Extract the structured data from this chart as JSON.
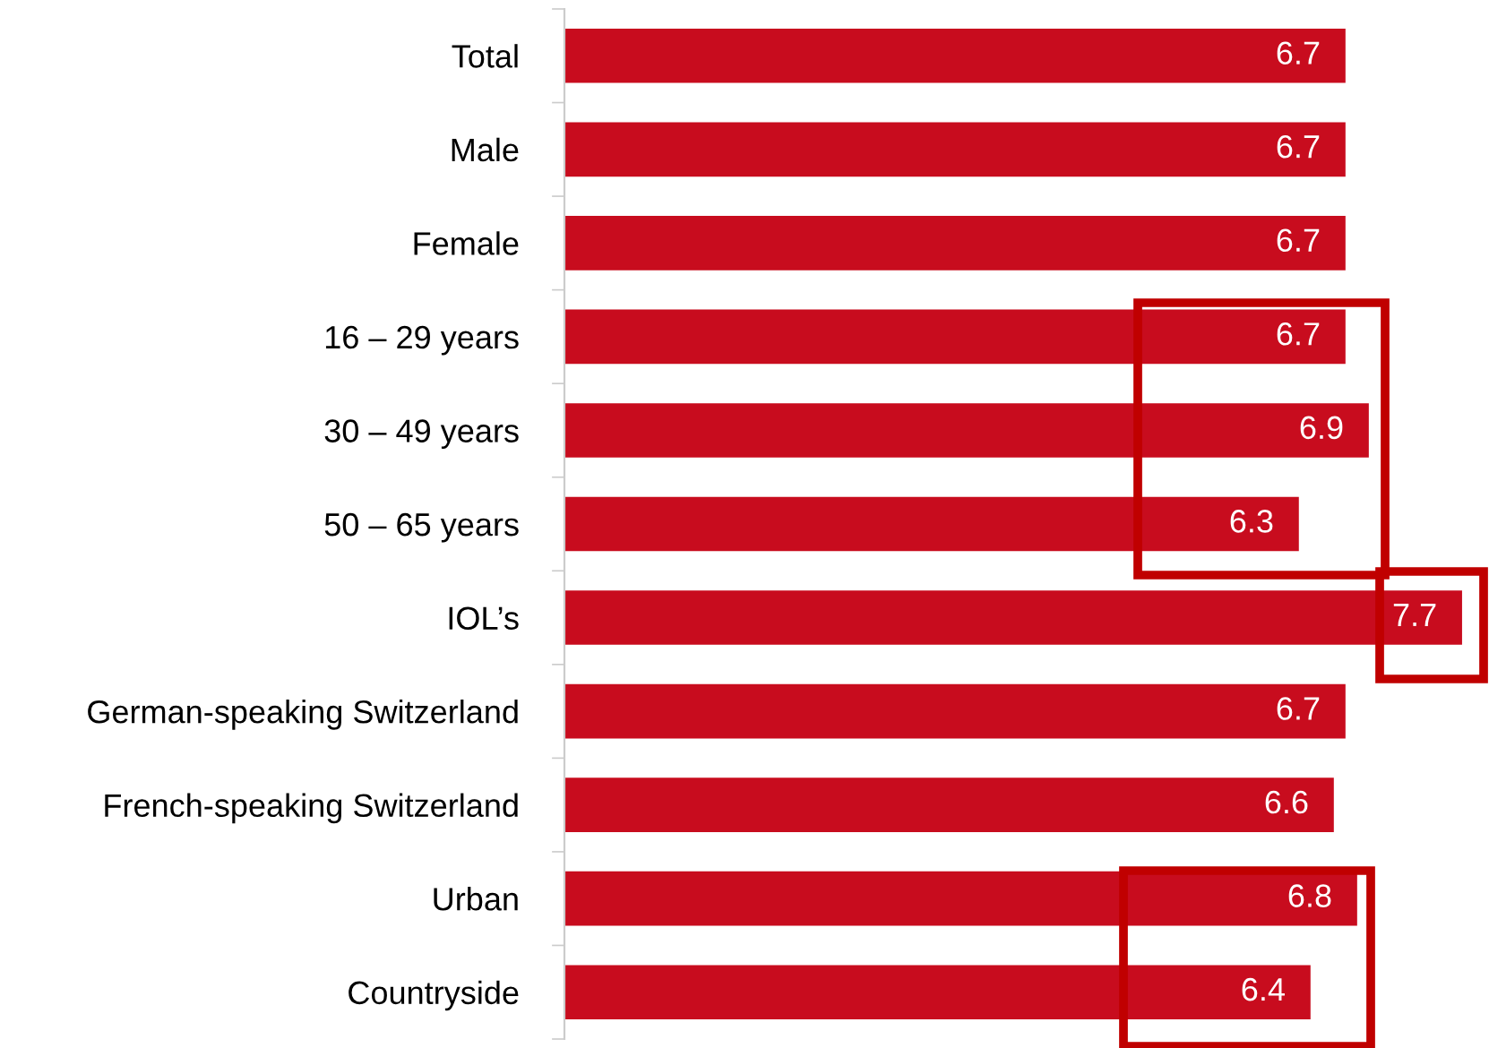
{
  "chart_data": {
    "type": "bar",
    "orientation": "horizontal",
    "categories": [
      "Total",
      "Male",
      "Female",
      "16 – 29 years",
      "30 – 49 years",
      "50 – 65 years",
      "IOL’s",
      "German-speaking Switzerland",
      "French-speaking Switzerland",
      "Urban",
      "Countryside"
    ],
    "values": [
      6.7,
      6.7,
      6.7,
      6.7,
      6.9,
      6.3,
      7.7,
      6.7,
      6.6,
      6.8,
      6.4
    ],
    "color": "#c80c1e",
    "data_labels": true,
    "grid": false,
    "legend": false,
    "tick_labels": "y"
  }
}
